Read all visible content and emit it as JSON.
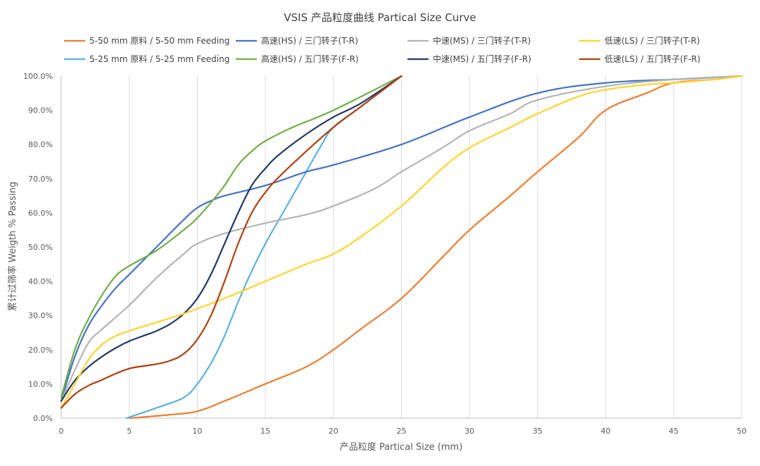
{
  "chart_data": {
    "type": "line",
    "title": "VSIS 产品粒度曲线 Partical Size Curve",
    "xlabel": "产品粒度 Partical Size (mm)",
    "ylabel": "累计过筛率 Weigth % Passing",
    "xlim": [
      0,
      50
    ],
    "ylim": [
      0,
      100
    ],
    "x_ticks": [
      "0",
      "5",
      "10",
      "15",
      "20",
      "25",
      "30",
      "35",
      "40",
      "45",
      "50"
    ],
    "y_ticks": [
      "0.0%",
      "10.0%",
      "20.0%",
      "30.0%",
      "40.0%",
      "50.0%",
      "60.0%",
      "70.0%",
      "80.0%",
      "90.0%",
      "100.0%"
    ],
    "grid": "vertical",
    "legend_position": "top",
    "series": [
      {
        "name": "5-50 mm 原料 / 5-50 mm Feeding",
        "color": "#ED7D31",
        "points": [
          [
            5,
            0
          ],
          [
            8,
            1
          ],
          [
            10,
            2
          ],
          [
            12,
            5
          ],
          [
            15,
            10
          ],
          [
            18,
            15
          ],
          [
            20,
            20
          ],
          [
            22,
            26
          ],
          [
            25,
            35
          ],
          [
            28,
            47
          ],
          [
            30,
            55
          ],
          [
            33,
            65
          ],
          [
            35,
            72
          ],
          [
            38,
            82
          ],
          [
            40,
            90
          ],
          [
            43,
            95
          ],
          [
            45,
            98
          ],
          [
            48,
            99
          ],
          [
            50,
            100
          ]
        ]
      },
      {
        "name": "5-25 mm 原料 / 5-25 mm Feeding",
        "color": "#5BAFE0",
        "points": [
          [
            4.8,
            0
          ],
          [
            7,
            3
          ],
          [
            9,
            6
          ],
          [
            10,
            10
          ],
          [
            11,
            16
          ],
          [
            12,
            24
          ],
          [
            13,
            34
          ],
          [
            14,
            43
          ],
          [
            15,
            51
          ],
          [
            16,
            58
          ],
          [
            17,
            65
          ],
          [
            18,
            72
          ],
          [
            19,
            79
          ],
          [
            20,
            85
          ],
          [
            22,
            91
          ],
          [
            25,
            100
          ]
        ]
      },
      {
        "name": "高速(HS) / 三门转子(T-R)",
        "color": "#4472C4",
        "points": [
          [
            0,
            5
          ],
          [
            1,
            18
          ],
          [
            2,
            27
          ],
          [
            3,
            33
          ],
          [
            4,
            38
          ],
          [
            5,
            42
          ],
          [
            7,
            50
          ],
          [
            9,
            58
          ],
          [
            10,
            61.5
          ],
          [
            11,
            63.5
          ],
          [
            12,
            65
          ],
          [
            15,
            68
          ],
          [
            18,
            72
          ],
          [
            20,
            74
          ],
          [
            25,
            80
          ],
          [
            30,
            88
          ],
          [
            35,
            95
          ],
          [
            40,
            98
          ],
          [
            45,
            99
          ],
          [
            50,
            100
          ]
        ]
      },
      {
        "name": "高速(HS) / 五门转子(F-R)",
        "color": "#70AD47",
        "points": [
          [
            0,
            6
          ],
          [
            1,
            20
          ],
          [
            2,
            29
          ],
          [
            3,
            36
          ],
          [
            4,
            41.5
          ],
          [
            5,
            44.5
          ],
          [
            7,
            49
          ],
          [
            9,
            55
          ],
          [
            10,
            58.5
          ],
          [
            11,
            63
          ],
          [
            12,
            68
          ],
          [
            13,
            74
          ],
          [
            14,
            78
          ],
          [
            15,
            81
          ],
          [
            17,
            85
          ],
          [
            20,
            90
          ],
          [
            25,
            100
          ]
        ]
      },
      {
        "name": "中速(MS) / 三门转子(T-R)",
        "color": "#B4B4B4",
        "points": [
          [
            0,
            5
          ],
          [
            1,
            14
          ],
          [
            2,
            22
          ],
          [
            3,
            26
          ],
          [
            5,
            33
          ],
          [
            7,
            41
          ],
          [
            9,
            48
          ],
          [
            10,
            51
          ],
          [
            12,
            54
          ],
          [
            15,
            57
          ],
          [
            18,
            59.5
          ],
          [
            20,
            62
          ],
          [
            23,
            67
          ],
          [
            25,
            72
          ],
          [
            28,
            79
          ],
          [
            30,
            84
          ],
          [
            33,
            89
          ],
          [
            35,
            93
          ],
          [
            40,
            97
          ],
          [
            45,
            99
          ],
          [
            50,
            100
          ]
        ]
      },
      {
        "name": "中速(MS) / 五门转子(F-R)",
        "color": "#203864",
        "points": [
          [
            0,
            5
          ],
          [
            1,
            11
          ],
          [
            2,
            15
          ],
          [
            3,
            18
          ],
          [
            4,
            20.5
          ],
          [
            5,
            22.5
          ],
          [
            6,
            24
          ],
          [
            7,
            25.5
          ],
          [
            8,
            27.5
          ],
          [
            9,
            30.5
          ],
          [
            10,
            35
          ],
          [
            11,
            42
          ],
          [
            12,
            51
          ],
          [
            13,
            60
          ],
          [
            14,
            68
          ],
          [
            15,
            73
          ],
          [
            16,
            77
          ],
          [
            18,
            83
          ],
          [
            20,
            88
          ],
          [
            22,
            92
          ],
          [
            25,
            100
          ]
        ]
      },
      {
        "name": "低速(LS) / 三门转子(T-R)",
        "color": "#FFD52E",
        "points": [
          [
            0,
            3
          ],
          [
            1,
            10
          ],
          [
            2,
            17
          ],
          [
            3,
            21.5
          ],
          [
            4,
            24
          ],
          [
            5,
            25.5
          ],
          [
            7,
            28
          ],
          [
            9,
            30.5
          ],
          [
            10,
            32
          ],
          [
            12,
            35
          ],
          [
            15,
            40
          ],
          [
            18,
            45
          ],
          [
            20,
            48
          ],
          [
            22,
            53
          ],
          [
            25,
            62
          ],
          [
            28,
            73
          ],
          [
            30,
            79
          ],
          [
            33,
            85
          ],
          [
            35,
            89
          ],
          [
            38,
            94
          ],
          [
            40,
            96
          ],
          [
            43,
            97.5
          ],
          [
            45,
            98
          ],
          [
            48,
            99
          ],
          [
            50,
            100
          ]
        ]
      },
      {
        "name": "低速(LS) / 五门转子(F-R)",
        "color": "#B13F0E",
        "points": [
          [
            0,
            3
          ],
          [
            1,
            7
          ],
          [
            2,
            9.5
          ],
          [
            3,
            11.2
          ],
          [
            4,
            13
          ],
          [
            5,
            14.5
          ],
          [
            6,
            15.2
          ],
          [
            7,
            15.8
          ],
          [
            8,
            16.8
          ],
          [
            9,
            18.8
          ],
          [
            10,
            23
          ],
          [
            11,
            30
          ],
          [
            12,
            40
          ],
          [
            13,
            51
          ],
          [
            14,
            60
          ],
          [
            15,
            66
          ],
          [
            16,
            70.5
          ],
          [
            18,
            78
          ],
          [
            20,
            85
          ],
          [
            22,
            91
          ],
          [
            25,
            100
          ]
        ]
      }
    ]
  }
}
